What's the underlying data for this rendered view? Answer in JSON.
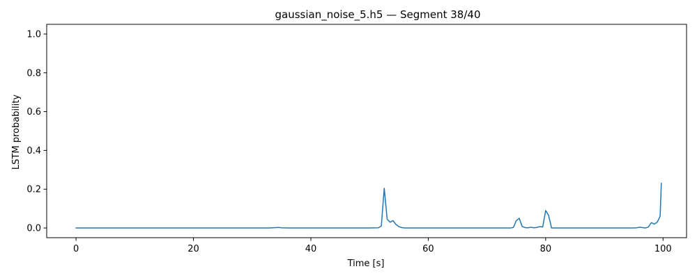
{
  "chart_data": {
    "type": "line",
    "title": "gaussian_noise_5.h5 — Segment 38/40",
    "xlabel": "Time [s]",
    "ylabel": "LSTM probability",
    "xlim": [
      -5,
      104
    ],
    "ylim": [
      -0.05,
      1.05
    ],
    "xticks": [
      0,
      20,
      40,
      60,
      80,
      100
    ],
    "yticks": [
      0.0,
      0.2,
      0.4,
      0.6,
      0.8,
      1.0
    ],
    "xtick_labels": [
      "0",
      "20",
      "40",
      "60",
      "80",
      "100"
    ],
    "ytick_labels": [
      "0.0",
      "0.2",
      "0.4",
      "0.6",
      "0.8",
      "1.0"
    ],
    "grid": false,
    "series": [
      {
        "color": "#1f77b4",
        "x": [
          0,
          10,
          20,
          30,
          33,
          34,
          34.5,
          35,
          36,
          40,
          50,
          51.5,
          52,
          52.5,
          53,
          53.5,
          54,
          54.5,
          55,
          55.5,
          56,
          57,
          60,
          70,
          74,
          74.5,
          75,
          75.5,
          76,
          76.5,
          77,
          77.5,
          78,
          78.5,
          79,
          79.5,
          80,
          80.5,
          81,
          82,
          85,
          90,
          95,
          95.5,
          96,
          96.5,
          97,
          97.5,
          98,
          98.5,
          99,
          99.5
        ],
        "y": [
          0.0,
          0.0,
          0.0,
          0.0,
          0.0,
          0.002,
          0.003,
          0.001,
          0.0,
          0.0,
          0.0,
          0.001,
          0.01,
          0.205,
          0.045,
          0.03,
          0.038,
          0.018,
          0.007,
          0.002,
          0.0,
          0.0,
          0.0,
          0.0,
          0.0,
          0.003,
          0.038,
          0.05,
          0.008,
          0.002,
          0.001,
          0.004,
          0.001,
          0.003,
          0.007,
          0.005,
          0.09,
          0.065,
          0.0,
          0.0,
          0.0,
          0.0,
          0.0,
          0.001,
          0.004,
          0.002,
          0.0,
          0.005,
          0.028,
          0.02,
          0.03,
          0.06
        ]
      }
    ],
    "end_point": {
      "x": 99.7,
      "y": 0.23
    }
  }
}
